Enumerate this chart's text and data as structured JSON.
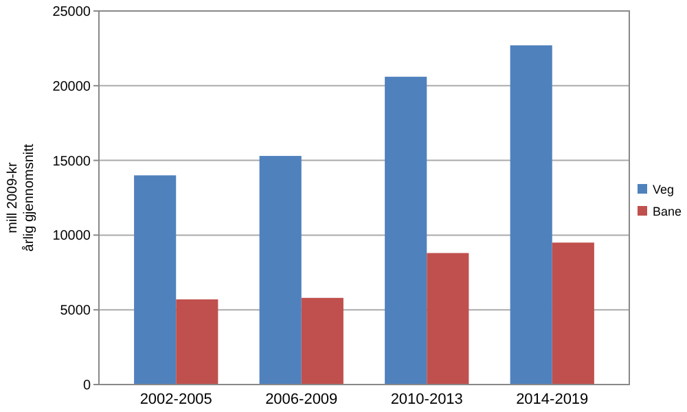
{
  "chart_data": {
    "type": "bar",
    "ylabel": "mill 2009-kr\nårlig gjennomsnitt",
    "categories": [
      "2002-2005",
      "2006-2009",
      "2010-2013",
      "2014-2019"
    ],
    "series": [
      {
        "name": "Veg",
        "color": "#4f81bd",
        "values": [
          14000,
          15300,
          20600,
          22700
        ]
      },
      {
        "name": "Bane",
        "color": "#c0504d",
        "values": [
          5700,
          5800,
          8800,
          9500
        ]
      }
    ],
    "ylim": [
      0,
      25000
    ],
    "yticks": [
      0,
      5000,
      10000,
      15000,
      20000,
      25000
    ],
    "grid": "y",
    "legend": "right"
  }
}
